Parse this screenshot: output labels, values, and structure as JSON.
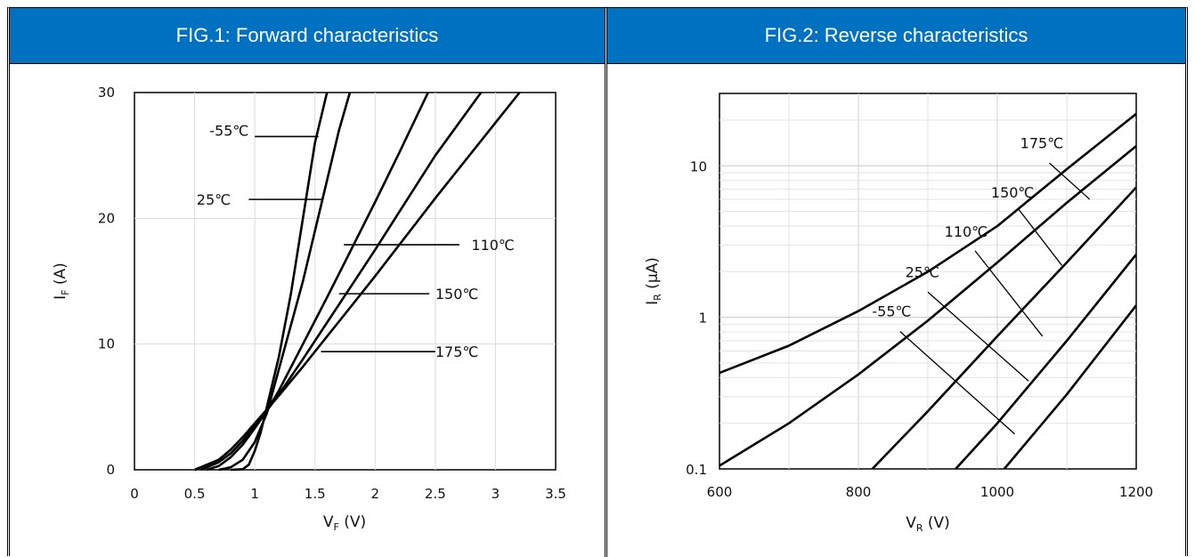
{
  "chart_data": [
    {
      "type": "line",
      "title": "FIG.1: Forward characteristics",
      "xlabel": "V",
      "xlabel_sub": "F",
      "xlabel_unit": " (V)",
      "ylabel": "I",
      "ylabel_sub": "F",
      "ylabel_unit": " (A)",
      "xlim": [
        0,
        3.5
      ],
      "ylim": [
        0,
        30
      ],
      "xticks": [
        0,
        0.5,
        1,
        1.5,
        2,
        2.5,
        3,
        3.5
      ],
      "xtick_labels": [
        "0",
        "0.5",
        "1",
        "1.5",
        "2",
        "2.5",
        "3",
        "3.5"
      ],
      "yticks": [
        0,
        10,
        20,
        30
      ],
      "ytick_labels": [
        "0",
        "10",
        "20",
        "30"
      ],
      "grid": true,
      "series": [
        {
          "name": "-55℃",
          "points": [
            [
              0.8,
              0
            ],
            [
              0.9,
              0.05
            ],
            [
              0.95,
              0.4
            ],
            [
              1.0,
              1.5
            ],
            [
              1.05,
              3
            ],
            [
              1.1,
              5
            ],
            [
              1.2,
              9
            ],
            [
              1.3,
              14
            ],
            [
              1.4,
              20
            ],
            [
              1.5,
              26
            ],
            [
              1.6,
              30
            ]
          ]
        },
        {
          "name": "25℃",
          "points": [
            [
              0.7,
              0
            ],
            [
              0.8,
              0.2
            ],
            [
              0.9,
              0.8
            ],
            [
              1.0,
              2.2
            ],
            [
              1.1,
              4.5
            ],
            [
              1.2,
              8
            ],
            [
              1.3,
              11.5
            ],
            [
              1.4,
              15
            ],
            [
              1.5,
              19
            ],
            [
              1.6,
              23
            ],
            [
              1.7,
              27
            ],
            [
              1.79,
              30
            ]
          ]
        },
        {
          "name": "110℃",
          "points": [
            [
              0.6,
              0
            ],
            [
              0.7,
              0.3
            ],
            [
              0.8,
              1.0
            ],
            [
              0.9,
              2.0
            ],
            [
              1.0,
              3.3
            ],
            [
              1.1,
              4.7
            ],
            [
              1.2,
              6.3
            ],
            [
              1.4,
              10
            ],
            [
              1.6,
              13.7
            ],
            [
              1.8,
              17.5
            ],
            [
              2.0,
              21.3
            ],
            [
              2.2,
              25.2
            ],
            [
              2.44,
              30
            ]
          ]
        },
        {
          "name": "150℃",
          "points": [
            [
              0.55,
              0
            ],
            [
              0.7,
              0.6
            ],
            [
              0.8,
              1.3
            ],
            [
              0.9,
              2.3
            ],
            [
              1.0,
              3.5
            ],
            [
              1.1,
              4.7
            ],
            [
              1.2,
              6.0
            ],
            [
              1.4,
              8.8
            ],
            [
              1.6,
              11.7
            ],
            [
              1.8,
              14.6
            ],
            [
              2.0,
              17.5
            ],
            [
              2.2,
              20.5
            ],
            [
              2.5,
              25
            ],
            [
              2.88,
              30
            ]
          ]
        },
        {
          "name": "175℃",
          "points": [
            [
              0.5,
              0
            ],
            [
              0.7,
              0.8
            ],
            [
              0.8,
              1.6
            ],
            [
              0.9,
              2.6
            ],
            [
              1.0,
              3.7
            ],
            [
              1.1,
              4.8
            ],
            [
              1.2,
              5.9
            ],
            [
              1.4,
              8.2
            ],
            [
              1.6,
              10.6
            ],
            [
              1.8,
              13.0
            ],
            [
              2.0,
              15.4
            ],
            [
              2.5,
              21.6
            ],
            [
              3.0,
              27.6
            ],
            [
              3.2,
              30
            ]
          ]
        }
      ]
    },
    {
      "type": "line",
      "title": "FIG.2: Reverse characteristics",
      "xlabel": "V",
      "xlabel_sub": "R",
      "xlabel_unit": " (V)",
      "ylabel": "I",
      "ylabel_sub": "R",
      "ylabel_unit": " (μA)",
      "xlim": [
        600,
        1200
      ],
      "ylim": [
        0.1,
        30
      ],
      "yscale": "log",
      "xticks": [
        600,
        800,
        1000,
        1200
      ],
      "xtick_labels": [
        "600",
        "800",
        "1000",
        "1200"
      ],
      "yticks": [
        0.1,
        1,
        10
      ],
      "ytick_labels": [
        "0.1",
        "1",
        "10"
      ],
      "grid": true,
      "series": [
        {
          "name": "175℃",
          "points": [
            [
              600,
              0.43
            ],
            [
              700,
              0.65
            ],
            [
              800,
              1.1
            ],
            [
              900,
              2.0
            ],
            [
              1000,
              4.0
            ],
            [
              1100,
              9.5
            ],
            [
              1200,
              22
            ]
          ]
        },
        {
          "name": "150℃",
          "points": [
            [
              600,
              0.105
            ],
            [
              700,
              0.2
            ],
            [
              800,
              0.42
            ],
            [
              900,
              0.95
            ],
            [
              1000,
              2.3
            ],
            [
              1100,
              5.7
            ],
            [
              1200,
              13.5
            ]
          ]
        },
        {
          "name": "110℃",
          "points": [
            [
              820,
              0.1
            ],
            [
              900,
              0.24
            ],
            [
              1000,
              0.75
            ],
            [
              1100,
              2.3
            ],
            [
              1200,
              7.2
            ]
          ]
        },
        {
          "name": "25℃",
          "points": [
            [
              940,
              0.1
            ],
            [
              1000,
              0.2
            ],
            [
              1100,
              0.7
            ],
            [
              1200,
              2.6
            ]
          ]
        },
        {
          "name": "-55℃",
          "points": [
            [
              1010,
              0.1
            ],
            [
              1100,
              0.31
            ],
            [
              1200,
              1.2
            ]
          ]
        }
      ]
    }
  ]
}
